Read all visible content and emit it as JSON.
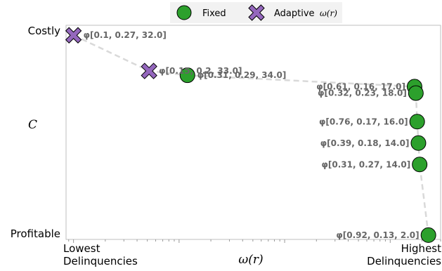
{
  "chart_data": {
    "type": "scatter",
    "x_axis": {
      "label": "ω(r)",
      "scale": "log",
      "range": [
        0.85,
        3000
      ],
      "tick_left": [
        "Lowest",
        "Delinquencies"
      ],
      "tick_right": [
        "Highest",
        "Delinquencies"
      ]
    },
    "y_axis": {
      "label": "C",
      "range": [
        0,
        30
      ],
      "tick_top": "Costly",
      "tick_bottom": "Profitable"
    },
    "grid": false,
    "legend_placement": "top-center",
    "legend": [
      {
        "key": "fixed",
        "label": "Fixed",
        "marker": "circle",
        "color": "#2ca02c"
      },
      {
        "key": "adaptive",
        "label": "Adaptive",
        "math": "ω(r)",
        "marker": "x",
        "color": "#9467bd"
      }
    ],
    "series": [
      {
        "name": "Fixed",
        "marker": "circle",
        "color": "#2ca02c",
        "points": [
          {
            "x": 12,
            "y": 23.0,
            "label": "φ[0.31, 0.29, 34.0]"
          },
          {
            "x": 1700,
            "y": 21.4,
            "label": "φ[0.61, 0.16, 17.0]"
          },
          {
            "x": 1750,
            "y": 20.5,
            "label": "φ[0.32, 0.23, 18.0]"
          },
          {
            "x": 1800,
            "y": 16.5,
            "label": "φ[0.76, 0.17, 16.0]"
          },
          {
            "x": 1850,
            "y": 13.5,
            "label": "φ[0.39, 0.18, 14.0]"
          },
          {
            "x": 1900,
            "y": 10.5,
            "label": "φ[0.31, 0.27, 14.0]"
          },
          {
            "x": 2300,
            "y": 0.6,
            "label": "φ[0.92, 0.13, 2.0]"
          }
        ]
      },
      {
        "name": "Adaptive ω(r)",
        "marker": "x",
        "color": "#9467bd",
        "points": [
          {
            "x": 1.0,
            "y": 28.6,
            "label": "φ[0.1, 0.27, 32.0]"
          },
          {
            "x": 5.2,
            "y": 23.6,
            "label": "φ[0.15, 0.2, 33.0]"
          }
        ]
      }
    ],
    "frontier": {
      "style": "dashed",
      "color": "#d9d9d9",
      "points": [
        {
          "x": 1.0,
          "y": 28.6
        },
        {
          "x": 5.2,
          "y": 23.6
        },
        {
          "x": 12,
          "y": 23.0
        },
        {
          "x": 1700,
          "y": 21.4
        },
        {
          "x": 1750,
          "y": 20.5
        },
        {
          "x": 1800,
          "y": 16.5
        },
        {
          "x": 1850,
          "y": 13.5
        },
        {
          "x": 1900,
          "y": 10.5
        },
        {
          "x": 2300,
          "y": 0.6
        }
      ]
    }
  }
}
